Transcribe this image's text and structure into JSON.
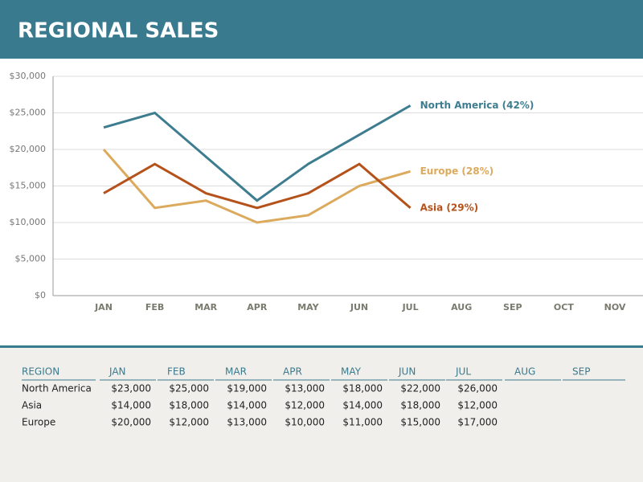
{
  "header": {
    "title": "REGIONAL SALES"
  },
  "chart_data": {
    "type": "line",
    "categories": [
      "JAN",
      "FEB",
      "MAR",
      "APR",
      "MAY",
      "JUN",
      "JUL",
      "AUG",
      "SEP",
      "OCT",
      "NOV"
    ],
    "series": [
      {
        "name": "North America",
        "label": "North America (42%)",
        "color": "#3d7d8f",
        "values": [
          23000,
          25000,
          19000,
          13000,
          18000,
          22000,
          26000,
          null,
          null,
          null,
          null
        ]
      },
      {
        "name": "Europe",
        "label": "Europe (28%)",
        "color": "#dcaa5c",
        "values": [
          20000,
          12000,
          13000,
          10000,
          11000,
          15000,
          17000,
          null,
          null,
          null,
          null
        ]
      },
      {
        "name": "Asia",
        "label": "Asia (29%)",
        "color": "#b5521b",
        "values": [
          14000,
          18000,
          14000,
          12000,
          14000,
          18000,
          12000,
          null,
          null,
          null,
          null
        ]
      }
    ],
    "ylim": [
      0,
      30000
    ],
    "yticks": [
      {
        "value": 0,
        "label": "$0"
      },
      {
        "value": 5000,
        "label": "$5,000"
      },
      {
        "value": 10000,
        "label": "$10,000"
      },
      {
        "value": 15000,
        "label": "$15,000"
      },
      {
        "value": 20000,
        "label": "$20,000"
      },
      {
        "value": 25000,
        "label": "$25,000"
      },
      {
        "value": 30000,
        "label": "$30,000"
      }
    ],
    "grid": true
  },
  "table": {
    "header": [
      "REGION",
      "JAN",
      "FEB",
      "MAR",
      "APR",
      "MAY",
      "JUN",
      "JUL",
      "AUG",
      "SEP"
    ],
    "rows": [
      [
        "North America",
        "$23,000",
        "$25,000",
        "$19,000",
        "$13,000",
        "$18,000",
        "$22,000",
        "$26,000"
      ],
      [
        "Asia",
        "$14,000",
        "$18,000",
        "$14,000",
        "$12,000",
        "$14,000",
        "$18,000",
        "$12,000"
      ],
      [
        "Europe",
        "$20,000",
        "$12,000",
        "$13,000",
        "$10,000",
        "$11,000",
        "$15,000",
        "$17,000"
      ]
    ]
  }
}
